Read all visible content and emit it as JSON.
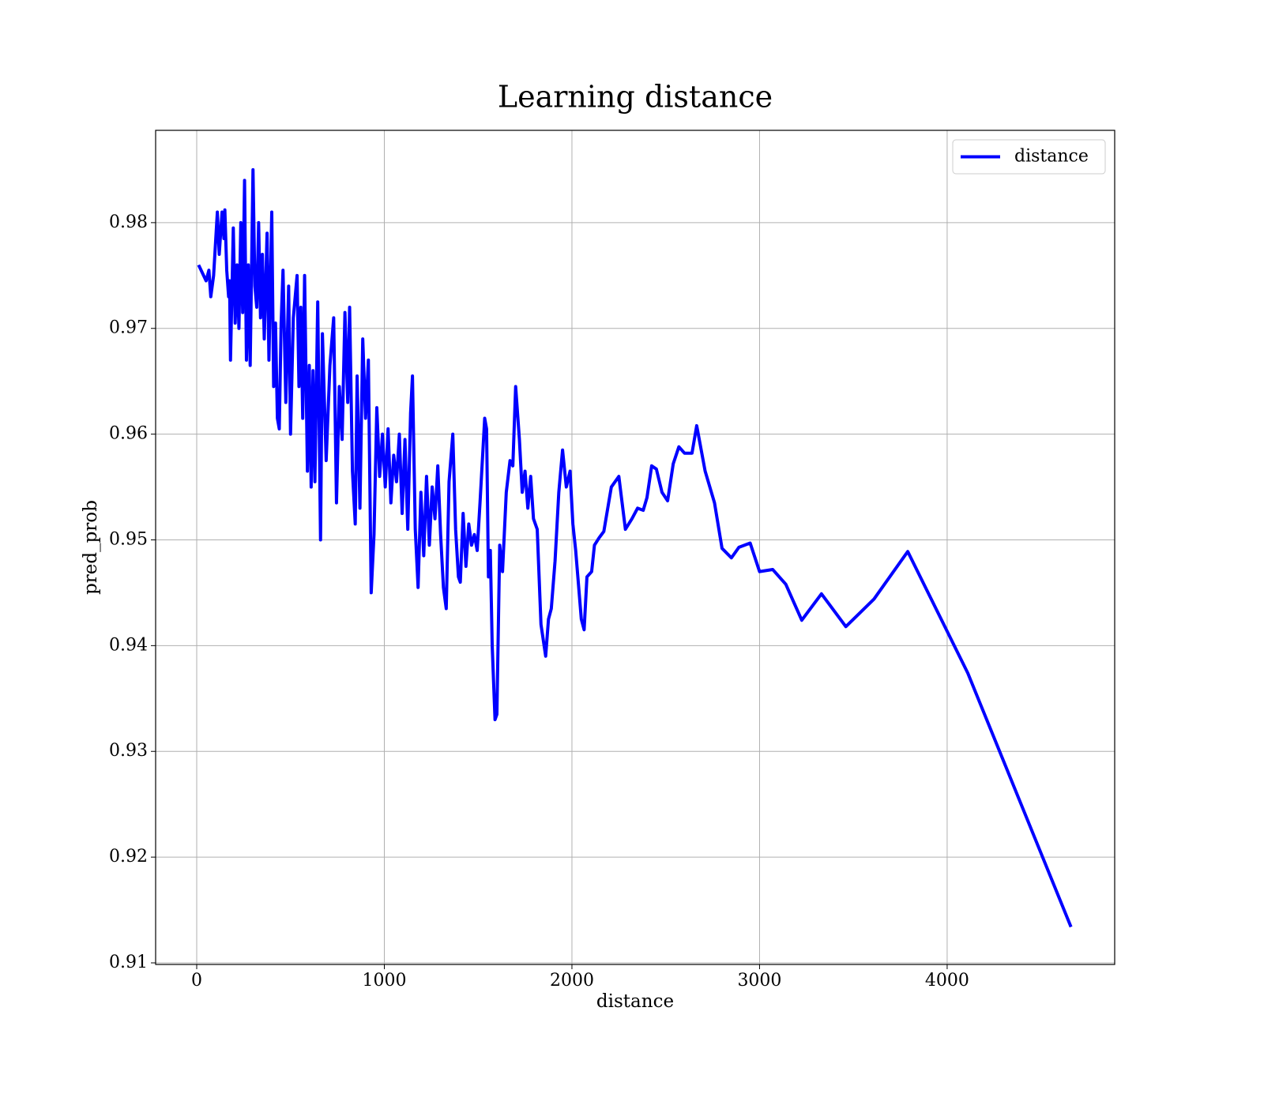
{
  "chart_data": {
    "type": "line",
    "title": "Learning distance",
    "xlabel": "distance",
    "ylabel": "pred_prob",
    "x": [
      10,
      50,
      65,
      75,
      90,
      110,
      120,
      135,
      145,
      150,
      160,
      170,
      175,
      180,
      195,
      205,
      215,
      225,
      235,
      245,
      255,
      265,
      275,
      285,
      300,
      310,
      320,
      330,
      340,
      350,
      360,
      375,
      385,
      400,
      410,
      420,
      430,
      440,
      450,
      460,
      475,
      490,
      500,
      515,
      535,
      545,
      555,
      565,
      575,
      590,
      600,
      610,
      620,
      630,
      645,
      660,
      670,
      690,
      710,
      730,
      745,
      760,
      775,
      790,
      805,
      815,
      830,
      845,
      855,
      870,
      885,
      900,
      915,
      930,
      945,
      960,
      975,
      990,
      1005,
      1020,
      1035,
      1050,
      1065,
      1080,
      1095,
      1110,
      1125,
      1140,
      1150,
      1165,
      1180,
      1195,
      1210,
      1225,
      1240,
      1255,
      1270,
      1285,
      1300,
      1315,
      1330,
      1345,
      1365,
      1380,
      1395,
      1405,
      1420,
      1435,
      1450,
      1465,
      1480,
      1495,
      1510,
      1535,
      1545,
      1555,
      1565,
      1575,
      1590,
      1600,
      1615,
      1630,
      1650,
      1670,
      1685,
      1700,
      1720,
      1735,
      1750,
      1765,
      1780,
      1795,
      1815,
      1835,
      1860,
      1875,
      1890,
      1910,
      1930,
      1950,
      1970,
      1990,
      2005,
      2020,
      2050,
      2065,
      2080,
      2105,
      2120,
      2145,
      2170,
      2210,
      2250,
      2285,
      2320,
      2350,
      2380,
      2400,
      2425,
      2450,
      2480,
      2510,
      2540,
      2570,
      2600,
      2640,
      2665,
      2710,
      2760,
      2800,
      2850,
      2890,
      2950,
      3000,
      3070,
      3140,
      3225,
      3330,
      3460,
      3610,
      3790,
      4110,
      4660
    ],
    "series": [
      {
        "name": "distance",
        "color": "#0000ff",
        "values": [
          0.976,
          0.9745,
          0.9755,
          0.973,
          0.975,
          0.981,
          0.977,
          0.981,
          0.9785,
          0.9812,
          0.9755,
          0.973,
          0.9745,
          0.967,
          0.9795,
          0.9705,
          0.976,
          0.97,
          0.98,
          0.9715,
          0.984,
          0.967,
          0.976,
          0.9665,
          0.985,
          0.974,
          0.972,
          0.98,
          0.971,
          0.977,
          0.969,
          0.979,
          0.967,
          0.981,
          0.9645,
          0.9705,
          0.9615,
          0.9605,
          0.9705,
          0.9755,
          0.963,
          0.974,
          0.96,
          0.971,
          0.975,
          0.9645,
          0.972,
          0.9615,
          0.975,
          0.9565,
          0.9665,
          0.955,
          0.966,
          0.9555,
          0.9725,
          0.95,
          0.9695,
          0.9575,
          0.9665,
          0.971,
          0.9535,
          0.9645,
          0.9595,
          0.9715,
          0.963,
          0.972,
          0.9565,
          0.9515,
          0.9655,
          0.953,
          0.969,
          0.9615,
          0.967,
          0.945,
          0.9505,
          0.9625,
          0.956,
          0.96,
          0.955,
          0.9605,
          0.9535,
          0.958,
          0.9555,
          0.96,
          0.9525,
          0.9595,
          0.951,
          0.962,
          0.9655,
          0.951,
          0.9455,
          0.9545,
          0.9485,
          0.956,
          0.9495,
          0.955,
          0.952,
          0.957,
          0.9505,
          0.9455,
          0.9435,
          0.9555,
          0.96,
          0.951,
          0.9465,
          0.946,
          0.9525,
          0.9475,
          0.9515,
          0.9495,
          0.9505,
          0.949,
          0.9535,
          0.9615,
          0.9605,
          0.9465,
          0.949,
          0.94,
          0.933,
          0.9335,
          0.9495,
          0.947,
          0.9545,
          0.9575,
          0.957,
          0.9645,
          0.9595,
          0.9545,
          0.9565,
          0.953,
          0.956,
          0.952,
          0.951,
          0.942,
          0.939,
          0.9425,
          0.9435,
          0.948,
          0.9545,
          0.9585,
          0.955,
          0.9565,
          0.9515,
          0.949,
          0.9425,
          0.9415,
          0.9465,
          0.947,
          0.9495,
          0.9502,
          0.9508,
          0.955,
          0.956,
          0.951,
          0.952,
          0.953,
          0.9528,
          0.954,
          0.957,
          0.9567,
          0.9545,
          0.9537,
          0.9572,
          0.9588,
          0.9582,
          0.9582,
          0.9608,
          0.9565,
          0.9535,
          0.9492,
          0.9483,
          0.9493,
          0.9497,
          0.947,
          0.9472,
          0.9458,
          0.9424,
          0.9449,
          0.9418,
          0.9444,
          0.9489,
          0.9374,
          0.9134
        ]
      }
    ],
    "xlim": [
      -219,
      4893
    ],
    "ylim": [
      0.90985,
      0.98873
    ],
    "xticks": [
      0,
      1000,
      2000,
      3000,
      4000
    ],
    "yticks": [
      0.91,
      0.92,
      0.93,
      0.94,
      0.95,
      0.96,
      0.97,
      0.98
    ],
    "grid": true,
    "legend": "upper right"
  }
}
